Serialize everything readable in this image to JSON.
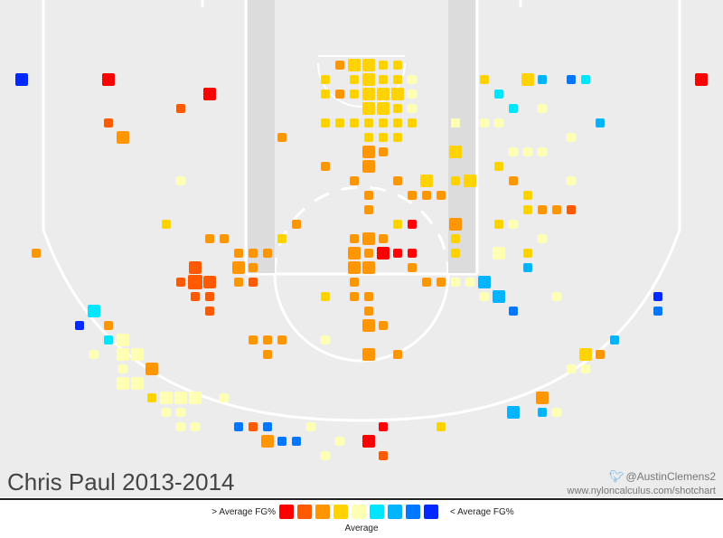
{
  "title": "Chris Paul 2013-2014",
  "credits": {
    "twitter_icon": "twitter-bird-icon",
    "twitter": "@AustinClemens2",
    "url": "www.nyloncalculus.com/shotchart"
  },
  "legend": {
    "left_label": "> Average FG%",
    "right_label": "< Average FG%",
    "mid_label": "Average",
    "colors": [
      "#ff0000",
      "#ff5a00",
      "#ff9600",
      "#ffd200",
      "#ffffb4",
      "#00e6ff",
      "#00b4ff",
      "#0078ff",
      "#0028ff"
    ]
  },
  "chart_data": {
    "type": "heatmap",
    "description_scale": "shot location bins; color = FG% relative to league average (index into legend.colors), size = shot frequency",
    "xlim": [
      0,
      50
    ],
    "ylim": [
      0,
      34.5
    ],
    "points": [
      [
        1.5,
        5.5,
        8,
        1
      ],
      [
        7.5,
        5.5,
        0,
        1
      ],
      [
        14.5,
        6.5,
        0,
        1
      ],
      [
        48.5,
        5.5,
        0,
        1
      ],
      [
        7.5,
        8.5,
        1,
        0
      ],
      [
        12.5,
        7.5,
        1,
        0
      ],
      [
        8.5,
        9.5,
        2,
        1
      ],
      [
        12.5,
        12.5,
        4,
        0
      ],
      [
        11.5,
        15.5,
        3,
        0
      ],
      [
        2.5,
        17.5,
        2,
        0
      ],
      [
        14.5,
        16.5,
        2,
        0
      ],
      [
        15.5,
        16.5,
        2,
        0
      ],
      [
        13.5,
        18.5,
        1,
        1
      ],
      [
        13.5,
        19.5,
        1,
        2
      ],
      [
        14.5,
        19.5,
        1,
        1
      ],
      [
        12.5,
        19.5,
        1,
        0
      ],
      [
        13.5,
        20.5,
        1,
        0
      ],
      [
        14.5,
        20.5,
        1,
        0
      ],
      [
        14.5,
        21.5,
        1,
        0
      ],
      [
        6.5,
        21.5,
        5,
        1
      ],
      [
        5.5,
        22.5,
        8,
        0
      ],
      [
        7.5,
        22.5,
        2,
        0
      ],
      [
        7.5,
        23.5,
        5,
        0
      ],
      [
        8.5,
        23.5,
        4,
        1
      ],
      [
        9.5,
        24.5,
        4,
        1
      ],
      [
        8.5,
        24.5,
        4,
        1
      ],
      [
        8.5,
        25.5,
        4,
        0
      ],
      [
        10.5,
        25.5,
        2,
        1
      ],
      [
        10.5,
        27.5,
        3,
        0
      ],
      [
        11.5,
        27.5,
        4,
        1
      ],
      [
        12.5,
        27.5,
        4,
        1
      ],
      [
        13.5,
        27.5,
        4,
        1
      ],
      [
        11.5,
        28.5,
        4,
        0
      ],
      [
        12.5,
        28.5,
        4,
        0
      ],
      [
        13.5,
        29.5,
        4,
        0
      ],
      [
        12.5,
        29.5,
        4,
        0
      ],
      [
        15.5,
        27.5,
        4,
        0
      ],
      [
        16.5,
        29.5,
        7,
        0
      ],
      [
        18.5,
        29.5,
        7,
        0
      ],
      [
        20.5,
        30.5,
        7,
        0
      ],
      [
        19.5,
        30.5,
        7,
        0
      ],
      [
        17.5,
        29.5,
        1,
        0
      ],
      [
        18.5,
        30.5,
        2,
        1
      ],
      [
        21.5,
        29.5,
        4,
        0
      ],
      [
        22.5,
        31.5,
        4,
        0
      ],
      [
        23.5,
        30.5,
        4,
        0
      ],
      [
        25.5,
        30.5,
        0,
        1
      ],
      [
        26.5,
        29.5,
        0,
        0
      ],
      [
        26.5,
        31.5,
        1,
        0
      ],
      [
        30.5,
        29.5,
        3,
        0
      ],
      [
        35.5,
        28.5,
        6,
        1
      ],
      [
        37.5,
        28.5,
        6,
        0
      ],
      [
        38.5,
        28.5,
        4,
        0
      ],
      [
        37.5,
        27.5,
        2,
        1
      ],
      [
        40.5,
        25.5,
        4,
        0
      ],
      [
        41.5,
        24.5,
        2,
        0
      ],
      [
        40.5,
        24.5,
        3,
        1
      ],
      [
        39.5,
        25.5,
        4,
        0
      ],
      [
        42.5,
        23.5,
        6,
        0
      ],
      [
        45.5,
        20.5,
        8,
        0
      ],
      [
        45.5,
        21.5,
        7,
        0
      ],
      [
        35.5,
        21.5,
        7,
        0
      ],
      [
        36.5,
        18.5,
        6,
        0
      ],
      [
        38.5,
        20.5,
        4,
        0
      ],
      [
        6.5,
        24.5,
        4,
        0
      ],
      [
        8.5,
        26.5,
        4,
        1
      ],
      [
        9.5,
        26.5,
        4,
        1
      ],
      [
        17.5,
        23.5,
        2,
        0
      ],
      [
        18.5,
        23.5,
        2,
        0
      ],
      [
        19.5,
        23.5,
        2,
        0
      ],
      [
        18.5,
        24.5,
        2,
        0
      ],
      [
        22.5,
        23.5,
        4,
        0
      ],
      [
        25.5,
        24.5,
        2,
        1
      ],
      [
        27.5,
        24.5,
        2,
        0
      ],
      [
        25.5,
        22.5,
        2,
        1
      ],
      [
        25.5,
        21.5,
        2,
        0
      ],
      [
        26.5,
        22.5,
        2,
        0
      ],
      [
        24.5,
        16.5,
        2,
        0
      ],
      [
        25.5,
        16.5,
        2,
        1
      ],
      [
        24.5,
        17.5,
        2,
        1
      ],
      [
        25.5,
        17.5,
        2,
        0
      ],
      [
        26.5,
        16.5,
        2,
        0
      ],
      [
        24.5,
        18.5,
        2,
        1
      ],
      [
        25.5,
        18.5,
        2,
        1
      ],
      [
        26.5,
        17.5,
        0,
        1
      ],
      [
        24.5,
        19.5,
        2,
        0
      ],
      [
        25.5,
        20.5,
        2,
        0
      ],
      [
        24.5,
        20.5,
        2,
        0
      ],
      [
        22.5,
        20.5,
        3,
        0
      ],
      [
        24.5,
        20.5,
        2,
        0
      ],
      [
        16.5,
        17.5,
        2,
        0
      ],
      [
        17.5,
        17.5,
        2,
        0
      ],
      [
        18.5,
        17.5,
        2,
        0
      ],
      [
        16.5,
        18.5,
        2,
        1
      ],
      [
        17.5,
        18.5,
        2,
        0
      ],
      [
        16.5,
        19.5,
        2,
        0
      ],
      [
        19.5,
        16.5,
        3,
        0
      ],
      [
        17.5,
        19.5,
        1,
        0
      ],
      [
        20.5,
        15.5,
        2,
        0
      ],
      [
        28.5,
        18.5,
        2,
        0
      ],
      [
        29.5,
        19.5,
        2,
        0
      ],
      [
        30.5,
        19.5,
        2,
        0
      ],
      [
        31.5,
        19.5,
        4,
        0
      ],
      [
        32.5,
        19.5,
        4,
        0
      ],
      [
        33.5,
        19.5,
        6,
        1
      ],
      [
        34.5,
        20.5,
        6,
        1
      ],
      [
        33.5,
        20.5,
        4,
        0
      ],
      [
        28.5,
        17.5,
        0,
        0
      ],
      [
        27.5,
        17.5,
        0,
        0
      ],
      [
        31.5,
        17.5,
        3,
        0
      ],
      [
        31.5,
        15.5,
        2,
        1
      ],
      [
        31.5,
        16.5,
        3,
        0
      ],
      [
        34.5,
        15.5,
        3,
        0
      ],
      [
        35.5,
        15.5,
        4,
        0
      ],
      [
        36.5,
        17.5,
        3,
        0
      ],
      [
        36.5,
        18.5,
        4,
        1
      ],
      [
        34.5,
        17.5,
        4,
        1
      ],
      [
        37.5,
        16.5,
        4,
        0
      ],
      [
        36.5,
        14.5,
        3,
        0
      ],
      [
        37.5,
        14.5,
        2,
        0
      ],
      [
        39.5,
        14.5,
        1,
        0
      ],
      [
        31.5,
        12.5,
        3,
        0
      ],
      [
        29.5,
        13.5,
        2,
        0
      ],
      [
        28.5,
        13.5,
        2,
        0
      ],
      [
        30.5,
        13.5,
        2,
        0
      ],
      [
        27.5,
        12.5,
        2,
        0
      ],
      [
        25.5,
        13.5,
        2,
        0
      ],
      [
        25.5,
        14.5,
        2,
        0
      ],
      [
        28.5,
        15.5,
        0,
        0
      ],
      [
        27.5,
        15.5,
        3,
        0
      ],
      [
        29.5,
        12.5,
        3,
        1
      ],
      [
        32.5,
        12.5,
        3,
        1
      ],
      [
        34.5,
        11.5,
        3,
        0
      ],
      [
        35.5,
        12.5,
        2,
        0
      ],
      [
        36.5,
        13.5,
        3,
        0
      ],
      [
        38.5,
        14.5,
        2,
        0
      ],
      [
        35.5,
        10.5,
        4,
        0
      ],
      [
        36.5,
        10.5,
        4,
        0
      ],
      [
        37.5,
        10.5,
        4,
        0
      ],
      [
        39.5,
        12.5,
        4,
        0
      ],
      [
        31.5,
        10.5,
        3,
        1
      ],
      [
        35.5,
        7.5,
        5,
        0
      ],
      [
        37.5,
        5.5,
        6,
        0
      ],
      [
        36.5,
        5.5,
        3,
        1
      ],
      [
        33.5,
        5.5,
        3,
        0
      ],
      [
        34.5,
        6.5,
        5,
        0
      ],
      [
        39.5,
        5.5,
        7,
        0
      ],
      [
        41.5,
        8.5,
        6,
        0
      ],
      [
        40.5,
        5.5,
        5,
        0
      ],
      [
        37.5,
        7.5,
        4,
        0
      ],
      [
        39.5,
        9.5,
        4,
        0
      ],
      [
        33.5,
        8.5,
        4,
        0
      ],
      [
        25.5,
        5.5,
        3,
        1
      ],
      [
        26.5,
        5.5,
        3,
        0
      ],
      [
        27.5,
        5.5,
        3,
        0
      ],
      [
        24.5,
        5.5,
        3,
        0
      ],
      [
        23.5,
        4.5,
        2,
        0
      ],
      [
        24.5,
        4.5,
        3,
        1
      ],
      [
        25.5,
        4.5,
        3,
        1
      ],
      [
        26.5,
        4.5,
        3,
        0
      ],
      [
        27.5,
        4.5,
        3,
        0
      ],
      [
        22.5,
        5.5,
        3,
        0
      ],
      [
        22.5,
        6.5,
        3,
        0
      ],
      [
        23.5,
        6.5,
        2,
        0
      ],
      [
        24.5,
        6.5,
        3,
        0
      ],
      [
        25.5,
        6.5,
        3,
        1
      ],
      [
        26.5,
        6.5,
        3,
        1
      ],
      [
        27.5,
        6.5,
        3,
        1
      ],
      [
        28.5,
        6.5,
        4,
        0
      ],
      [
        28.5,
        5.5,
        4,
        0
      ],
      [
        25.5,
        7.5,
        3,
        1
      ],
      [
        26.5,
        7.5,
        3,
        1
      ],
      [
        27.5,
        7.5,
        3,
        0
      ],
      [
        28.5,
        7.5,
        4,
        0
      ],
      [
        22.5,
        8.5,
        3,
        0
      ],
      [
        23.5,
        8.5,
        3,
        0
      ],
      [
        24.5,
        8.5,
        3,
        0
      ],
      [
        25.5,
        8.5,
        3,
        0
      ],
      [
        26.5,
        8.5,
        3,
        0
      ],
      [
        27.5,
        8.5,
        3,
        0
      ],
      [
        28.5,
        8.5,
        3,
        0
      ],
      [
        23.5,
        4.5,
        2,
        0
      ],
      [
        25.5,
        9.5,
        3,
        0
      ],
      [
        26.5,
        9.5,
        3,
        0
      ],
      [
        27.5,
        9.5,
        3,
        0
      ],
      [
        25.5,
        10.5,
        2,
        1
      ],
      [
        31.5,
        8.5,
        4,
        0
      ],
      [
        34.5,
        8.5,
        4,
        0
      ],
      [
        19.5,
        9.5,
        2,
        0
      ],
      [
        25.5,
        11.5,
        2,
        1
      ],
      [
        24.5,
        12.5,
        2,
        0
      ],
      [
        25.5,
        10.5,
        2,
        0
      ],
      [
        26.5,
        10.5,
        2,
        0
      ],
      [
        22.5,
        11.5,
        2,
        0
      ]
    ]
  }
}
